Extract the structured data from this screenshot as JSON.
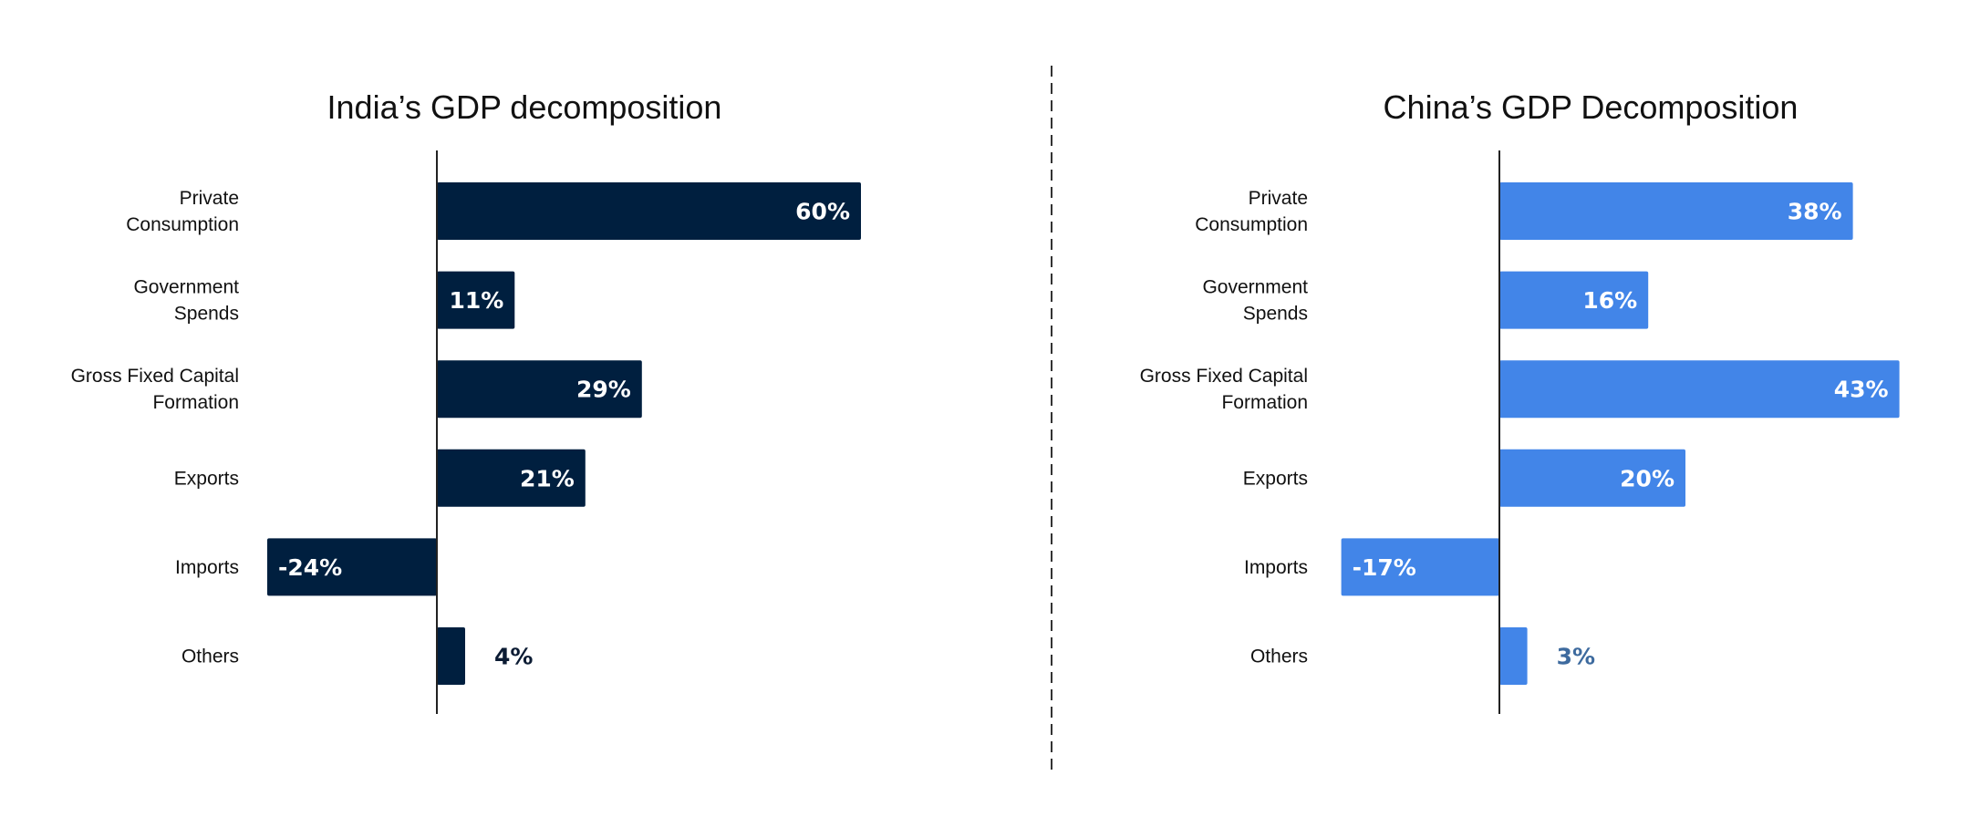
{
  "chart_data": [
    {
      "type": "bar",
      "orientation": "horizontal",
      "title": "India’s GDP decomposition",
      "categories": [
        [
          "Private",
          "Consumption"
        ],
        [
          "Government",
          "Spends"
        ],
        [
          "Gross Fixed Capital",
          "Formation"
        ],
        [
          "Exports"
        ],
        [
          "Imports"
        ],
        [
          "Others"
        ]
      ],
      "values": [
        60,
        11,
        29,
        21,
        -24,
        4
      ],
      "value_labels": [
        "60%",
        "11%",
        "29%",
        "21%",
        "-24%",
        "4%"
      ],
      "unit": "%",
      "bar_color": "#001F3F",
      "label_color_inside": "#FFFFFF",
      "label_color_outside": "#0B1B33",
      "xlabel": "",
      "ylabel": "",
      "grid": false
    },
    {
      "type": "bar",
      "orientation": "horizontal",
      "title": "China’s GDP Decomposition",
      "categories": [
        [
          "Private",
          "Consumption"
        ],
        [
          "Government",
          "Spends"
        ],
        [
          "Gross Fixed Capital",
          "Formation"
        ],
        [
          "Exports"
        ],
        [
          "Imports"
        ],
        [
          "Others"
        ]
      ],
      "values": [
        38,
        16,
        43,
        20,
        -17,
        3
      ],
      "value_labels": [
        "38%",
        "16%",
        "43%",
        "20%",
        "-17%",
        "3%"
      ],
      "unit": "%",
      "bar_color": "#4285E8",
      "label_color_inside": "#FFFFFF",
      "label_color_outside": "#3D6A9E",
      "xlabel": "",
      "ylabel": "",
      "grid": false
    }
  ],
  "separator": {
    "style": "dashed",
    "color": "#333333"
  }
}
